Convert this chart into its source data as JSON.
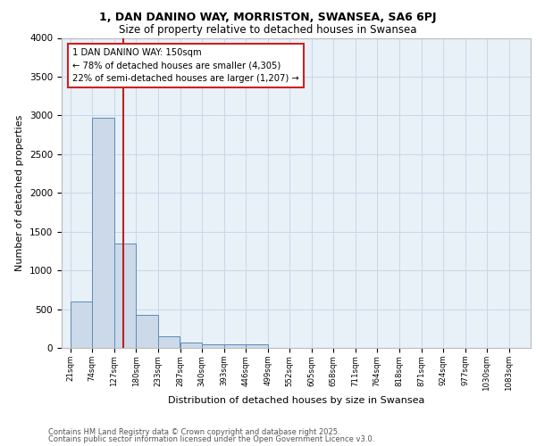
{
  "title1": "1, DAN DANINO WAY, MORRISTON, SWANSEA, SA6 6PJ",
  "title2": "Size of property relative to detached houses in Swansea",
  "xlabel": "Distribution of detached houses by size in Swansea",
  "ylabel": "Number of detached properties",
  "bar_left_edges": [
    21,
    74,
    127,
    180,
    233,
    287,
    340,
    393,
    446,
    499,
    552,
    605,
    658,
    711,
    764,
    818,
    871,
    924,
    977,
    1030
  ],
  "bar_heights": [
    600,
    2975,
    1345,
    430,
    155,
    70,
    45,
    45,
    45,
    0,
    0,
    0,
    0,
    0,
    0,
    0,
    0,
    0,
    0,
    0
  ],
  "bin_width": 53,
  "bar_color": "#ccd9e8",
  "bar_edge_color": "#5b8db8",
  "vline_x": 150,
  "vline_color": "#bb2222",
  "annotation_text": "1 DAN DANINO WAY: 150sqm\n← 78% of detached houses are smaller (4,305)\n22% of semi-detached houses are larger (1,207) →",
  "ylim": [
    0,
    4000
  ],
  "xlim": [
    0,
    1136
  ],
  "tick_labels": [
    "21sqm",
    "74sqm",
    "127sqm",
    "180sqm",
    "233sqm",
    "287sqm",
    "340sqm",
    "393sqm",
    "446sqm",
    "499sqm",
    "552sqm",
    "605sqm",
    "658sqm",
    "711sqm",
    "764sqm",
    "818sqm",
    "871sqm",
    "924sqm",
    "977sqm",
    "1030sqm",
    "1083sqm"
  ],
  "tick_positions": [
    21,
    74,
    127,
    180,
    233,
    287,
    340,
    393,
    446,
    499,
    552,
    605,
    658,
    711,
    764,
    818,
    871,
    924,
    977,
    1030,
    1083
  ],
  "grid_color": "#c8d8e8",
  "bg_color": "#e8f0f8",
  "footer1": "Contains HM Land Registry data © Crown copyright and database right 2025.",
  "footer2": "Contains public sector information licensed under the Open Government Licence v3.0."
}
